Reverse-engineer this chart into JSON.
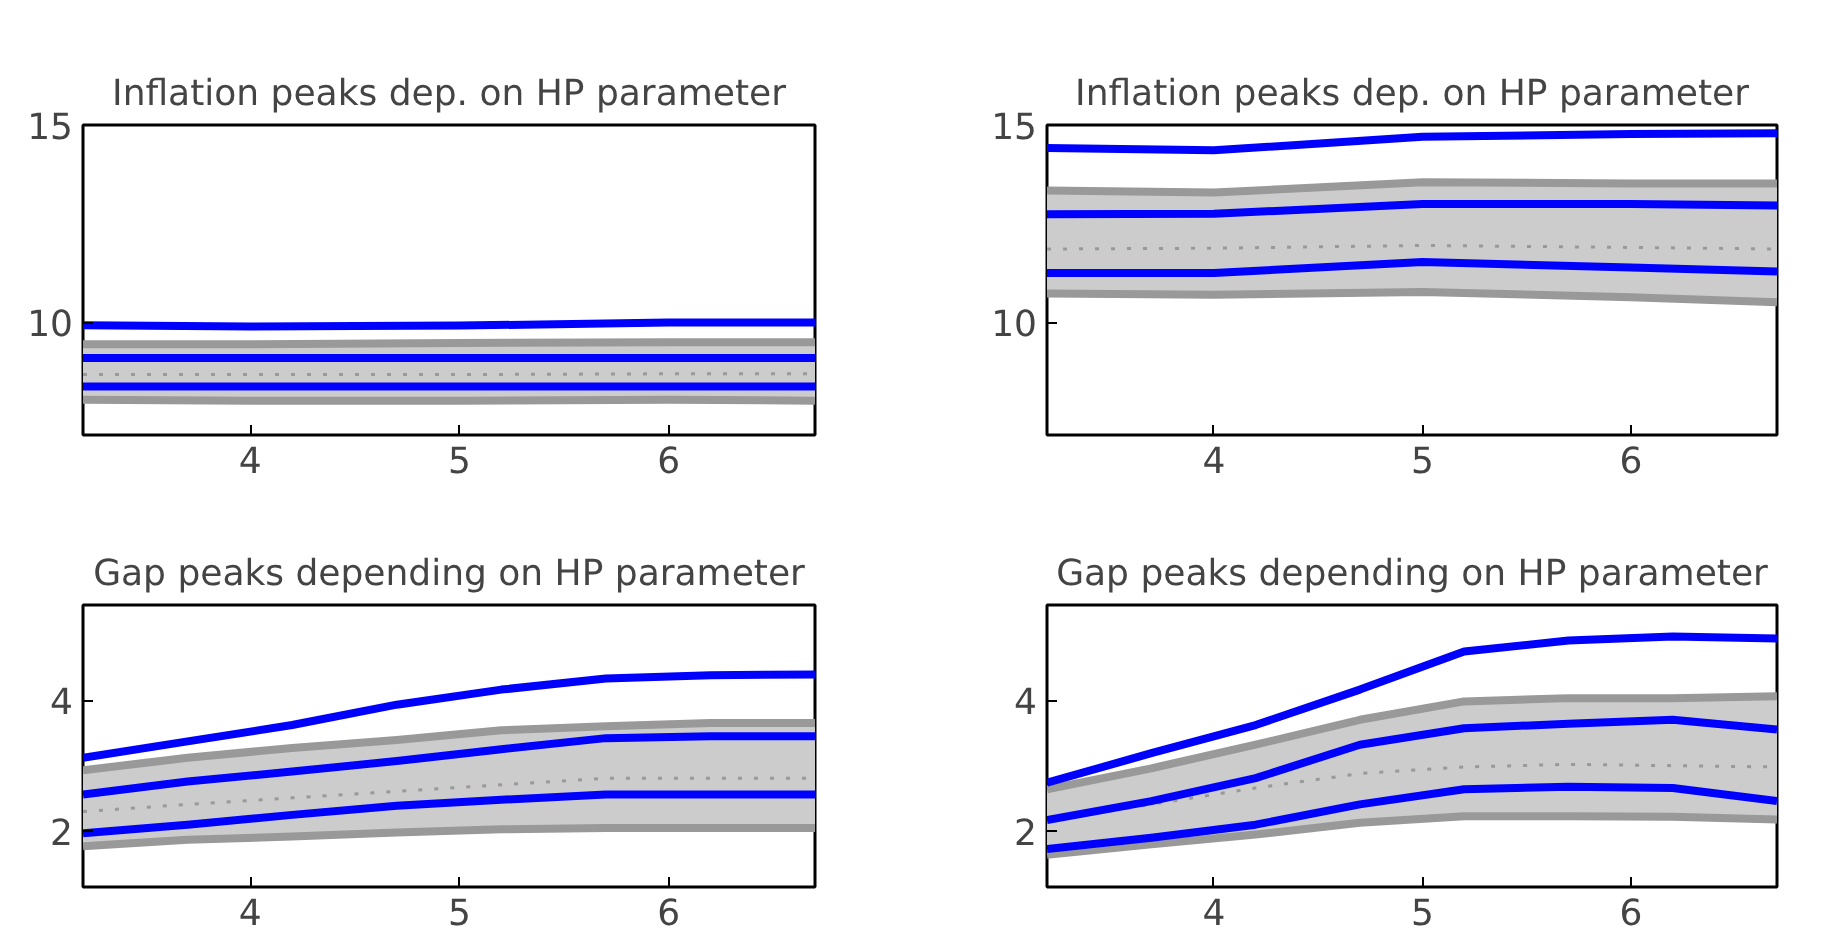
{
  "chart_data": [
    {
      "type": "line",
      "title": "Inflation peaks dep. on HP parameter",
      "x": [
        3.2,
        4,
        5,
        6,
        6.7
      ],
      "xlim": [
        3.2,
        6.7
      ],
      "xticks": [
        4,
        5,
        6
      ],
      "ylim": [
        7.15,
        15
      ],
      "yticks": [
        10,
        15
      ],
      "series": [
        {
          "color": "#999999",
          "line_style": "dotted",
          "values": [
            8.68,
            8.68,
            8.68,
            8.7,
            8.7
          ],
          "lower": [
            8.04,
            8.02,
            8.02,
            8.04,
            8.02
          ],
          "upper": [
            9.45,
            9.45,
            9.48,
            9.5,
            9.5
          ]
        },
        {
          "color": "#999999",
          "line_style": "solid",
          "values": [
            8.04,
            8.02,
            8.02,
            8.04,
            8.02
          ]
        },
        {
          "color": "#999999",
          "line_style": "solid",
          "values": [
            9.45,
            9.45,
            9.48,
            9.5,
            9.5
          ]
        },
        {
          "color": "#0000ff",
          "line_style": "solid",
          "values": [
            9.93,
            9.9,
            9.92,
            10.0,
            10.0
          ]
        },
        {
          "color": "#0000ff",
          "line_style": "solid",
          "values": [
            9.1,
            9.1,
            9.1,
            9.1,
            9.1
          ]
        },
        {
          "color": "#0000ff",
          "line_style": "solid",
          "values": [
            8.38,
            8.38,
            8.38,
            8.38,
            8.38
          ]
        }
      ]
    },
    {
      "type": "line",
      "title": "Inflation peaks dep. on HP parameter",
      "x": [
        3.2,
        4,
        5,
        6,
        6.7
      ],
      "xlim": [
        3.2,
        6.7
      ],
      "xticks": [
        4,
        5,
        6
      ],
      "ylim": [
        7.15,
        15
      ],
      "yticks": [
        10,
        15
      ],
      "series": [
        {
          "color": "#999999",
          "line_style": "dotted",
          "values": [
            11.86,
            11.88,
            11.95,
            11.9,
            11.86
          ],
          "lower": [
            10.73,
            10.7,
            10.77,
            10.64,
            10.51
          ],
          "upper": [
            13.34,
            13.29,
            13.55,
            13.52,
            13.52
          ]
        },
        {
          "color": "#999999",
          "line_style": "solid",
          "values": [
            10.73,
            10.7,
            10.77,
            10.64,
            10.51
          ]
        },
        {
          "color": "#999999",
          "line_style": "solid",
          "values": [
            13.34,
            13.29,
            13.55,
            13.52,
            13.52
          ]
        },
        {
          "color": "#0000ff",
          "line_style": "solid",
          "values": [
            14.42,
            14.36,
            14.7,
            14.77,
            14.79
          ]
        },
        {
          "color": "#0000ff",
          "line_style": "solid",
          "values": [
            12.74,
            12.75,
            13.0,
            13.0,
            12.96
          ]
        },
        {
          "color": "#0000ff",
          "line_style": "solid",
          "values": [
            11.25,
            11.25,
            11.53,
            11.39,
            11.29
          ]
        }
      ]
    },
    {
      "type": "line",
      "title": "Gap peaks depending on HP parameter",
      "x": [
        3.2,
        3.7,
        4.2,
        4.7,
        5.2,
        5.7,
        6.2,
        6.7
      ],
      "xlim": [
        3.2,
        6.7
      ],
      "xticks": [
        4,
        5,
        6
      ],
      "ylim": [
        1.15,
        5.45
      ],
      "yticks": [
        2,
        4
      ],
      "series": [
        {
          "color": "#999999",
          "line_style": "dotted",
          "values": [
            2.3,
            2.41,
            2.51,
            2.61,
            2.71,
            2.81,
            2.81,
            2.81
          ],
          "lower": [
            1.77,
            1.87,
            1.92,
            1.98,
            2.03,
            2.05,
            2.05,
            2.05
          ],
          "upper": [
            2.93,
            3.12,
            3.27,
            3.39,
            3.54,
            3.6,
            3.65,
            3.65
          ]
        },
        {
          "color": "#999999",
          "line_style": "solid",
          "values": [
            1.77,
            1.87,
            1.92,
            1.98,
            2.03,
            2.05,
            2.05,
            2.05
          ]
        },
        {
          "color": "#999999",
          "line_style": "solid",
          "values": [
            2.93,
            3.12,
            3.27,
            3.39,
            3.54,
            3.6,
            3.65,
            3.65
          ]
        },
        {
          "color": "#0000ff",
          "line_style": "solid",
          "values": [
            3.12,
            3.37,
            3.62,
            3.93,
            4.16,
            4.33,
            4.38,
            4.39
          ]
        },
        {
          "color": "#0000ff",
          "line_style": "solid",
          "values": [
            2.56,
            2.76,
            2.91,
            3.07,
            3.25,
            3.42,
            3.45,
            3.45
          ]
        },
        {
          "color": "#0000ff",
          "line_style": "solid",
          "values": [
            1.97,
            2.1,
            2.25,
            2.39,
            2.48,
            2.56,
            2.56,
            2.56
          ]
        }
      ]
    },
    {
      "type": "line",
      "title": "Gap peaks depending on HP parameter",
      "x": [
        3.2,
        3.7,
        4.2,
        4.7,
        5.2,
        5.7,
        6.2,
        6.7
      ],
      "xlim": [
        3.2,
        6.7
      ],
      "xticks": [
        4,
        5,
        6
      ],
      "ylim": [
        1.15,
        5.45
      ],
      "yticks": [
        2,
        4
      ],
      "series": [
        {
          "color": "#999999",
          "line_style": "dotted",
          "values": [
            2.15,
            2.41,
            2.66,
            2.88,
            2.98,
            3.02,
            3.0,
            2.98
          ],
          "lower": [
            1.64,
            1.8,
            1.95,
            2.13,
            2.23,
            2.23,
            2.22,
            2.18
          ],
          "upper": [
            2.64,
            2.96,
            3.32,
            3.7,
            3.98,
            4.03,
            4.03,
            4.06
          ]
        },
        {
          "color": "#999999",
          "line_style": "solid",
          "values": [
            1.64,
            1.8,
            1.95,
            2.13,
            2.23,
            2.23,
            2.22,
            2.18
          ]
        },
        {
          "color": "#999999",
          "line_style": "solid",
          "values": [
            2.64,
            2.96,
            3.32,
            3.7,
            3.98,
            4.03,
            4.03,
            4.06
          ]
        },
        {
          "color": "#0000ff",
          "line_style": "solid",
          "values": [
            2.74,
            3.19,
            3.62,
            4.16,
            4.74,
            4.91,
            4.97,
            4.94
          ]
        },
        {
          "color": "#0000ff",
          "line_style": "solid",
          "values": [
            2.17,
            2.46,
            2.81,
            3.32,
            3.57,
            3.64,
            3.7,
            3.55
          ]
        },
        {
          "color": "#0000ff",
          "line_style": "solid",
          "values": [
            1.73,
            1.9,
            2.1,
            2.41,
            2.64,
            2.68,
            2.66,
            2.46
          ]
        }
      ]
    }
  ]
}
